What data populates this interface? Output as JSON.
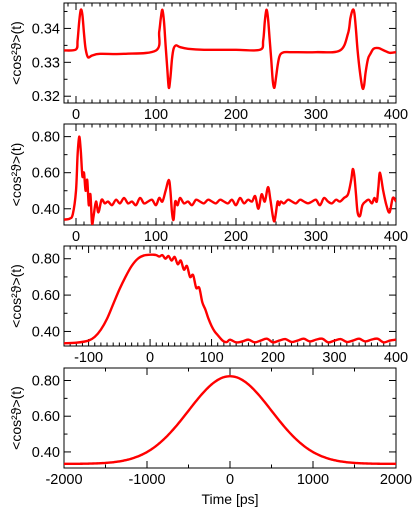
{
  "chart_data": [
    {
      "type": "line",
      "ylabel": "<cos²ϑ>(t)",
      "xlabel": "",
      "xlim": [
        -15,
        400
      ],
      "ylim": [
        0.318,
        0.3475
      ],
      "xticks": [
        "0",
        "100",
        "200",
        "300",
        "400"
      ],
      "yticks": [
        "0.32",
        "0.33",
        "0.34"
      ],
      "series": [
        {
          "color": "#ff0000",
          "x": [
            -15,
            0,
            2,
            4,
            6,
            8,
            10,
            12,
            15,
            20,
            30,
            60,
            100,
            104,
            106,
            108,
            110,
            112,
            114,
            116,
            118,
            120,
            122,
            125,
            130,
            140,
            160,
            200,
            230,
            234,
            236,
            238,
            240,
            242,
            244,
            246,
            248,
            250,
            252,
            254,
            256,
            260,
            270,
            300,
            330,
            340,
            343,
            346,
            348,
            350,
            352,
            355,
            358,
            360,
            362,
            365,
            368,
            372,
            378,
            385,
            392,
            400
          ],
          "y": [
            0.3335,
            0.3338,
            0.3365,
            0.342,
            0.3455,
            0.344,
            0.3385,
            0.334,
            0.3315,
            0.332,
            0.3325,
            0.3325,
            0.3335,
            0.339,
            0.343,
            0.3455,
            0.342,
            0.335,
            0.3285,
            0.3225,
            0.3255,
            0.331,
            0.334,
            0.335,
            0.3345,
            0.334,
            0.3337,
            0.3337,
            0.3337,
            0.3365,
            0.342,
            0.3455,
            0.343,
            0.337,
            0.331,
            0.3245,
            0.3225,
            0.3255,
            0.329,
            0.3315,
            0.3325,
            0.333,
            0.333,
            0.333,
            0.3335,
            0.3385,
            0.343,
            0.3455,
            0.3445,
            0.3395,
            0.3335,
            0.327,
            0.3225,
            0.323,
            0.327,
            0.331,
            0.3325,
            0.334,
            0.3342,
            0.3335,
            0.3328,
            0.333
          ]
        }
      ]
    },
    {
      "type": "line",
      "ylabel": "<cos²ϑ>(t)",
      "xlabel": "",
      "xlim": [
        -15,
        400
      ],
      "ylim": [
        0.31,
        0.87
      ],
      "xticks": [
        "0",
        "100",
        "200",
        "300",
        "400"
      ],
      "yticks": [
        "0.40",
        "0.60",
        "0.80"
      ],
      "series": [
        {
          "color": "#ff0000",
          "x": [
            -15,
            -8,
            -4,
            0,
            2,
            4,
            6,
            8,
            10,
            12,
            14,
            16,
            18,
            20,
            22,
            25,
            28,
            32,
            36,
            40,
            45,
            50,
            55,
            60,
            65,
            70,
            75,
            80,
            85,
            90,
            95,
            100,
            104,
            108,
            112,
            116,
            118,
            120,
            122,
            124,
            127,
            130,
            135,
            140,
            145,
            150,
            155,
            160,
            165,
            170,
            175,
            180,
            185,
            190,
            195,
            200,
            205,
            210,
            215,
            220,
            224,
            228,
            232,
            236,
            240,
            243,
            246,
            248,
            250,
            252,
            254,
            256,
            260,
            265,
            270,
            275,
            280,
            285,
            290,
            295,
            300,
            305,
            310,
            315,
            320,
            325,
            330,
            335,
            340,
            344,
            346,
            348,
            350,
            352,
            355,
            358,
            362,
            366,
            370,
            373,
            376,
            378,
            380,
            384,
            388,
            392,
            396,
            400
          ],
          "y": [
            0.34,
            0.345,
            0.37,
            0.5,
            0.7,
            0.8,
            0.72,
            0.58,
            0.6,
            0.5,
            0.56,
            0.42,
            0.48,
            0.32,
            0.36,
            0.44,
            0.38,
            0.45,
            0.43,
            0.44,
            0.42,
            0.45,
            0.43,
            0.46,
            0.43,
            0.44,
            0.42,
            0.46,
            0.43,
            0.44,
            0.45,
            0.42,
            0.46,
            0.44,
            0.5,
            0.56,
            0.5,
            0.38,
            0.34,
            0.44,
            0.42,
            0.46,
            0.43,
            0.44,
            0.42,
            0.45,
            0.44,
            0.43,
            0.45,
            0.44,
            0.43,
            0.45,
            0.44,
            0.43,
            0.45,
            0.42,
            0.46,
            0.43,
            0.45,
            0.44,
            0.47,
            0.4,
            0.48,
            0.44,
            0.52,
            0.45,
            0.36,
            0.33,
            0.38,
            0.44,
            0.42,
            0.44,
            0.43,
            0.45,
            0.44,
            0.43,
            0.45,
            0.44,
            0.43,
            0.44,
            0.45,
            0.42,
            0.46,
            0.44,
            0.43,
            0.45,
            0.44,
            0.46,
            0.48,
            0.56,
            0.62,
            0.58,
            0.48,
            0.38,
            0.36,
            0.42,
            0.44,
            0.45,
            0.43,
            0.46,
            0.44,
            0.52,
            0.6,
            0.5,
            0.42,
            0.38,
            0.46,
            0.44
          ]
        }
      ]
    },
    {
      "type": "line",
      "ylabel": "<cos²ϑ>(t)",
      "xlabel": "",
      "xlim": [
        -140,
        400
      ],
      "ylim": [
        0.32,
        0.87
      ],
      "xticks": [
        "-100",
        "0",
        "100",
        "200",
        "300",
        "400"
      ],
      "yticks": [
        "0.40",
        "0.60",
        "0.80"
      ],
      "series": [
        {
          "color": "#ff0000",
          "x": [
            -140,
            -120,
            -100,
            -90,
            -80,
            -70,
            -60,
            -50,
            -40,
            -30,
            -20,
            -10,
            0,
            5,
            10,
            15,
            20,
            25,
            30,
            35,
            40,
            45,
            50,
            55,
            60,
            65,
            70,
            75,
            80,
            85,
            90,
            95,
            100,
            105,
            110,
            115,
            120,
            125,
            130,
            140,
            150,
            160,
            170,
            180,
            190,
            200,
            210,
            220,
            230,
            240,
            250,
            260,
            270,
            280,
            290,
            300,
            310,
            320,
            330,
            340,
            350,
            360,
            370,
            380,
            390,
            400
          ],
          "y": [
            0.335,
            0.338,
            0.35,
            0.37,
            0.41,
            0.47,
            0.55,
            0.63,
            0.7,
            0.76,
            0.8,
            0.818,
            0.822,
            0.822,
            0.82,
            0.812,
            0.82,
            0.8,
            0.815,
            0.79,
            0.81,
            0.77,
            0.79,
            0.74,
            0.76,
            0.7,
            0.71,
            0.64,
            0.64,
            0.56,
            0.52,
            0.47,
            0.43,
            0.4,
            0.38,
            0.36,
            0.345,
            0.342,
            0.355,
            0.34,
            0.345,
            0.355,
            0.34,
            0.35,
            0.36,
            0.34,
            0.35,
            0.358,
            0.342,
            0.35,
            0.36,
            0.345,
            0.355,
            0.36,
            0.34,
            0.35,
            0.358,
            0.342,
            0.35,
            0.36,
            0.345,
            0.355,
            0.36,
            0.34,
            0.35,
            0.355
          ]
        }
      ]
    },
    {
      "type": "line",
      "ylabel": "<cos²ϑ>(t)",
      "xlabel": "Time [ps]",
      "xlim": [
        -2000,
        2000
      ],
      "ylim": [
        0.31,
        0.87
      ],
      "xticks": [
        "-2000",
        "-1000",
        "0",
        "1000",
        "2000"
      ],
      "yticks": [
        "0.40",
        "0.60",
        "0.80"
      ],
      "series": [
        {
          "color": "#ff0000",
          "gaussian": {
            "base": 0.333,
            "peak": 0.824,
            "sigma_ps": 500
          }
        }
      ]
    }
  ]
}
